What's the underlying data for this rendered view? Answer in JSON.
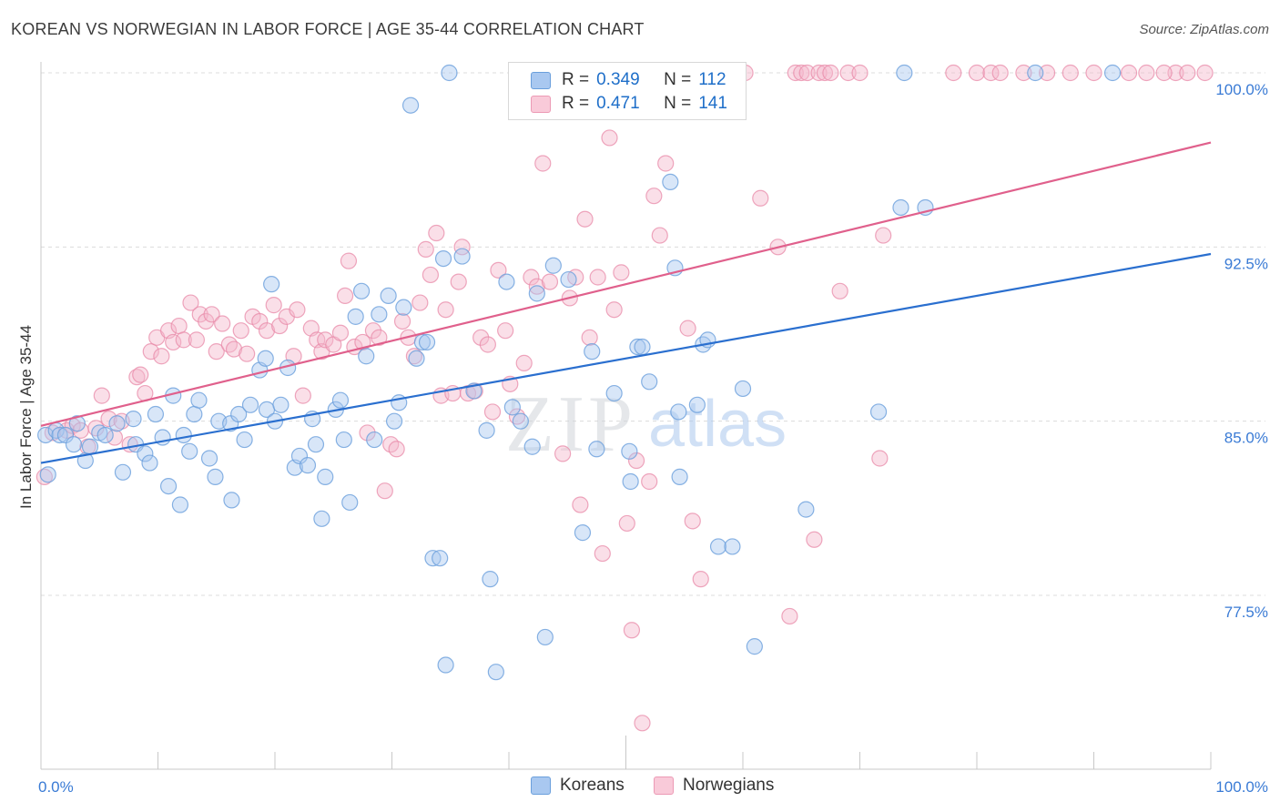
{
  "header": {
    "title": "KOREAN VS NORWEGIAN IN LABOR FORCE | AGE 35-44 CORRELATION CHART",
    "source": "Source: ZipAtlas.com"
  },
  "legend": {
    "koreans": {
      "r_label": "R =",
      "r_value": "0.349",
      "n_label": "N =",
      "n_value": "112"
    },
    "norwegians": {
      "r_label": "R =",
      "r_value": "0.471",
      "n_label": "N =",
      "n_value": "141"
    }
  },
  "bottom_legend": {
    "koreans": "Koreans",
    "norwegians": "Norwegians"
  },
  "watermark": {
    "zip": "ZIP",
    "atlas": "atlas"
  },
  "colors": {
    "koreans_fill": "#a9c8f0",
    "koreans_stroke": "#6a9fdc",
    "koreans_line": "#2a6fcf",
    "norwegians_fill": "#f5b9cc",
    "norwegians_stroke": "#e88aa8",
    "norwegians_line": "#e0608c",
    "tick_label": "#3a7bd5",
    "grid": "#dcdcdc"
  },
  "chart_data": {
    "type": "scatter",
    "title": "KOREAN VS NORWEGIAN IN LABOR FORCE | AGE 35-44 CORRELATION CHART",
    "xlabel": "",
    "ylabel": "In Labor Force | Age 35-44",
    "xlim": [
      0,
      100
    ],
    "ylim": [
      71.5,
      101.5
    ],
    "x_tick_labels": [
      "0.0%",
      "100.0%"
    ],
    "y_ticks": [
      77.5,
      85.0,
      92.5,
      100.0
    ],
    "y_tick_labels": [
      "77.5%",
      "85.0%",
      "92.5%",
      "100.0%"
    ],
    "grid": "horizontal dashed",
    "legend_position": "top-center",
    "series": [
      {
        "name": "Koreans",
        "trend": {
          "x": [
            0,
            100
          ],
          "y": [
            83.2,
            92.2
          ]
        },
        "points": [
          [
            0.4,
            84.4
          ],
          [
            0.6,
            82.7
          ],
          [
            1.3,
            84.6
          ],
          [
            1.6,
            84.4
          ],
          [
            2.1,
            84.4
          ],
          [
            2.8,
            84.0
          ],
          [
            3.1,
            84.9
          ],
          [
            3.8,
            83.3
          ],
          [
            4.2,
            83.9
          ],
          [
            5.0,
            84.5
          ],
          [
            5.5,
            84.4
          ],
          [
            6.5,
            84.9
          ],
          [
            7.0,
            82.8
          ],
          [
            7.9,
            85.1
          ],
          [
            8.1,
            84.0
          ],
          [
            8.9,
            83.6
          ],
          [
            9.3,
            83.2
          ],
          [
            9.8,
            85.3
          ],
          [
            10.4,
            84.3
          ],
          [
            10.9,
            82.2
          ],
          [
            11.3,
            86.1
          ],
          [
            11.9,
            81.4
          ],
          [
            12.2,
            84.4
          ],
          [
            12.7,
            83.7
          ],
          [
            13.1,
            85.3
          ],
          [
            13.5,
            85.9
          ],
          [
            14.4,
            83.4
          ],
          [
            14.9,
            82.6
          ],
          [
            15.2,
            85.0
          ],
          [
            16.2,
            84.9
          ],
          [
            16.3,
            81.6
          ],
          [
            16.9,
            85.3
          ],
          [
            17.4,
            84.2
          ],
          [
            17.9,
            85.7
          ],
          [
            18.7,
            87.2
          ],
          [
            19.2,
            87.7
          ],
          [
            19.3,
            85.5
          ],
          [
            19.7,
            90.9
          ],
          [
            20.0,
            85.0
          ],
          [
            20.5,
            85.7
          ],
          [
            21.1,
            87.3
          ],
          [
            21.7,
            83.0
          ],
          [
            22.1,
            83.5
          ],
          [
            22.8,
            83.1
          ],
          [
            23.2,
            85.1
          ],
          [
            23.5,
            84.0
          ],
          [
            24.0,
            80.8
          ],
          [
            24.3,
            82.6
          ],
          [
            25.2,
            85.5
          ],
          [
            25.6,
            85.9
          ],
          [
            25.9,
            84.2
          ],
          [
            26.4,
            81.5
          ],
          [
            26.9,
            89.5
          ],
          [
            27.4,
            90.6
          ],
          [
            27.8,
            87.8
          ],
          [
            28.5,
            84.2
          ],
          [
            28.9,
            89.6
          ],
          [
            29.7,
            90.4
          ],
          [
            30.2,
            85.0
          ],
          [
            30.6,
            85.8
          ],
          [
            31.0,
            89.9
          ],
          [
            31.6,
            98.6
          ],
          [
            32.1,
            87.7
          ],
          [
            32.6,
            88.4
          ],
          [
            33.0,
            88.4
          ],
          [
            33.5,
            79.1
          ],
          [
            34.1,
            79.1
          ],
          [
            34.4,
            92.0
          ],
          [
            34.6,
            74.5
          ],
          [
            34.9,
            100.0
          ],
          [
            36.0,
            92.1
          ],
          [
            37.0,
            86.3
          ],
          [
            38.1,
            84.6
          ],
          [
            38.4,
            78.2
          ],
          [
            38.9,
            74.2
          ],
          [
            39.8,
            91.0
          ],
          [
            40.3,
            85.6
          ],
          [
            41.0,
            85.0
          ],
          [
            42.0,
            83.9
          ],
          [
            42.4,
            90.5
          ],
          [
            43.1,
            75.7
          ],
          [
            43.8,
            91.7
          ],
          [
            45.1,
            91.1
          ],
          [
            46.3,
            80.2
          ],
          [
            47.1,
            88.0
          ],
          [
            47.5,
            83.8
          ],
          [
            49.0,
            86.2
          ],
          [
            50.3,
            83.7
          ],
          [
            50.4,
            82.4
          ],
          [
            51.0,
            88.2
          ],
          [
            51.4,
            88.2
          ],
          [
            52.0,
            86.7
          ],
          [
            53.8,
            95.3
          ],
          [
            54.2,
            91.6
          ],
          [
            54.5,
            85.4
          ],
          [
            54.6,
            82.6
          ],
          [
            55.1,
            100.0
          ],
          [
            55.3,
            100.0
          ],
          [
            56.1,
            85.7
          ],
          [
            56.6,
            88.3
          ],
          [
            57.0,
            88.5
          ],
          [
            57.9,
            79.6
          ],
          [
            59.1,
            79.6
          ],
          [
            60.0,
            86.4
          ],
          [
            61.0,
            75.3
          ],
          [
            65.4,
            81.2
          ],
          [
            71.6,
            85.4
          ],
          [
            73.5,
            94.2
          ],
          [
            73.8,
            100.0
          ],
          [
            75.6,
            94.2
          ],
          [
            85.0,
            100.0
          ],
          [
            91.6,
            100.0
          ]
        ]
      },
      {
        "name": "Norwegians",
        "trend": {
          "x": [
            0,
            100
          ],
          "y": [
            84.8,
            97.0
          ]
        },
        "points": [
          [
            0.3,
            82.6
          ],
          [
            1.0,
            84.5
          ],
          [
            2.2,
            84.6
          ],
          [
            2.7,
            84.8
          ],
          [
            3.4,
            84.6
          ],
          [
            4.0,
            83.9
          ],
          [
            4.7,
            84.7
          ],
          [
            5.2,
            86.1
          ],
          [
            5.8,
            85.1
          ],
          [
            6.3,
            84.3
          ],
          [
            6.9,
            85.0
          ],
          [
            7.6,
            84.0
          ],
          [
            8.2,
            86.9
          ],
          [
            8.5,
            87.0
          ],
          [
            8.9,
            86.2
          ],
          [
            9.4,
            88.0
          ],
          [
            9.9,
            88.6
          ],
          [
            10.3,
            87.8
          ],
          [
            10.9,
            88.9
          ],
          [
            11.3,
            88.4
          ],
          [
            11.8,
            89.1
          ],
          [
            12.2,
            88.5
          ],
          [
            12.8,
            90.1
          ],
          [
            13.3,
            88.5
          ],
          [
            13.6,
            89.6
          ],
          [
            14.1,
            89.3
          ],
          [
            14.6,
            89.6
          ],
          [
            15.0,
            88.0
          ],
          [
            15.5,
            89.2
          ],
          [
            16.1,
            88.3
          ],
          [
            16.5,
            88.1
          ],
          [
            17.1,
            88.9
          ],
          [
            17.6,
            87.9
          ],
          [
            18.1,
            89.5
          ],
          [
            18.7,
            89.3
          ],
          [
            19.3,
            88.9
          ],
          [
            19.9,
            90.0
          ],
          [
            20.4,
            89.1
          ],
          [
            21.0,
            89.5
          ],
          [
            21.6,
            87.8
          ],
          [
            21.9,
            89.8
          ],
          [
            22.4,
            86.1
          ],
          [
            23.1,
            89.0
          ],
          [
            23.6,
            88.5
          ],
          [
            24.0,
            88.0
          ],
          [
            24.3,
            88.5
          ],
          [
            25.0,
            88.3
          ],
          [
            25.6,
            88.8
          ],
          [
            26.0,
            90.4
          ],
          [
            26.3,
            91.9
          ],
          [
            26.8,
            88.2
          ],
          [
            27.5,
            88.4
          ],
          [
            27.9,
            84.5
          ],
          [
            28.4,
            88.9
          ],
          [
            28.9,
            88.6
          ],
          [
            29.4,
            82.0
          ],
          [
            29.9,
            84.0
          ],
          [
            30.4,
            83.8
          ],
          [
            30.9,
            89.3
          ],
          [
            31.4,
            88.6
          ],
          [
            31.9,
            87.8
          ],
          [
            32.4,
            90.1
          ],
          [
            32.9,
            92.4
          ],
          [
            33.3,
            91.3
          ],
          [
            33.8,
            93.1
          ],
          [
            34.2,
            86.1
          ],
          [
            34.6,
            89.8
          ],
          [
            35.2,
            86.2
          ],
          [
            35.7,
            91.0
          ],
          [
            36.0,
            92.5
          ],
          [
            36.5,
            86.2
          ],
          [
            37.1,
            86.3
          ],
          [
            37.6,
            88.6
          ],
          [
            38.2,
            88.3
          ],
          [
            38.6,
            85.4
          ],
          [
            39.1,
            91.5
          ],
          [
            39.7,
            88.9
          ],
          [
            40.1,
            86.6
          ],
          [
            40.7,
            85.2
          ],
          [
            41.3,
            87.5
          ],
          [
            41.9,
            91.2
          ],
          [
            42.4,
            90.8
          ],
          [
            42.9,
            96.1
          ],
          [
            43.5,
            91.0
          ],
          [
            44.0,
            100.0
          ],
          [
            44.6,
            83.6
          ],
          [
            45.2,
            90.3
          ],
          [
            45.7,
            91.2
          ],
          [
            46.1,
            81.4
          ],
          [
            46.5,
            93.7
          ],
          [
            46.9,
            88.6
          ],
          [
            47.6,
            91.2
          ],
          [
            48.0,
            79.3
          ],
          [
            48.6,
            97.2
          ],
          [
            49.0,
            89.8
          ],
          [
            49.6,
            91.4
          ],
          [
            50.1,
            80.6
          ],
          [
            50.5,
            76.0
          ],
          [
            50.9,
            83.3
          ],
          [
            51.4,
            72.0
          ],
          [
            52.0,
            82.4
          ],
          [
            52.4,
            94.7
          ],
          [
            52.9,
            93.0
          ],
          [
            53.4,
            96.1
          ],
          [
            54.1,
            100.0
          ],
          [
            55.3,
            89.0
          ],
          [
            55.7,
            80.7
          ],
          [
            56.4,
            78.2
          ],
          [
            58.0,
            100.0
          ],
          [
            59.1,
            100.0
          ],
          [
            59.5,
            100.0
          ],
          [
            60.2,
            100.0
          ],
          [
            61.5,
            94.6
          ],
          [
            63.0,
            92.5
          ],
          [
            64.0,
            76.6
          ],
          [
            64.5,
            100.0
          ],
          [
            65.0,
            100.0
          ],
          [
            65.5,
            100.0
          ],
          [
            66.1,
            79.9
          ],
          [
            66.5,
            100.0
          ],
          [
            67.0,
            100.0
          ],
          [
            67.5,
            100.0
          ],
          [
            68.3,
            90.6
          ],
          [
            69.0,
            100.0
          ],
          [
            70.0,
            100.0
          ],
          [
            71.7,
            83.4
          ],
          [
            72.0,
            93.0
          ],
          [
            78.0,
            100.0
          ],
          [
            80.0,
            100.0
          ],
          [
            81.2,
            100.0
          ],
          [
            82.0,
            100.0
          ],
          [
            84.0,
            100.0
          ],
          [
            86.0,
            100.0
          ],
          [
            88.0,
            100.0
          ],
          [
            93.0,
            100.0
          ],
          [
            94.5,
            100.0
          ],
          [
            97.0,
            100.0
          ],
          [
            99.5,
            100.0
          ],
          [
            98.0,
            100.0
          ],
          [
            96.0,
            100.0
          ],
          [
            90.0,
            100.0
          ]
        ]
      }
    ]
  }
}
